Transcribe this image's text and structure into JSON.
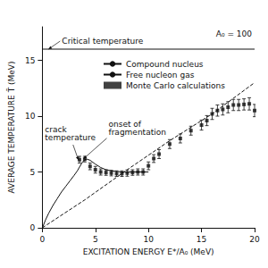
{
  "chart_data": {
    "type": "line",
    "xlabel": "EXCITATION ENERGY E*/A₀ (MeV)",
    "ylabel": "AVERAGE TEMPERATURE T̄ (MeV)",
    "xlim": [
      0,
      20
    ],
    "ylim": [
      0,
      18
    ],
    "xticks": [
      0,
      5,
      10,
      15,
      20
    ],
    "yticks": [
      0,
      5,
      10,
      15
    ],
    "color": "#111111",
    "grid": false,
    "legend": "upper center",
    "series": [
      {
        "name": "Compound nucleus",
        "type": "line",
        "line_style": "solid",
        "x": [
          0.01,
          0.3,
          0.6,
          1.0,
          1.4,
          1.8,
          2.2,
          2.6,
          3.0,
          3.3,
          3.6,
          3.8,
          4.0,
          4.2,
          4.5,
          5.0,
          5.5,
          6.0,
          6.5,
          7.0,
          7.5,
          8.0,
          9.0,
          10.0
        ],
        "values": [
          0.0,
          0.7,
          1.3,
          2.0,
          2.6,
          3.2,
          3.7,
          4.2,
          4.7,
          5.1,
          5.6,
          5.9,
          6.1,
          6.15,
          6.05,
          5.7,
          5.4,
          5.2,
          5.1,
          5.05,
          5.0,
          5.0,
          5.0,
          5.0
        ]
      },
      {
        "name": "Free nucleon gas",
        "type": "line",
        "line_style": "dashed",
        "x": [
          0.0,
          4.0,
          8.0,
          12.0,
          16.0,
          20.0
        ],
        "values": [
          0.0,
          2.5,
          5.2,
          7.8,
          10.2,
          13.0
        ]
      },
      {
        "name": "Monte Carlo calculations",
        "type": "scatter",
        "marker": "square",
        "x": [
          3.5,
          4.0,
          4.5,
          5.0,
          5.5,
          6.0,
          6.5,
          7.0,
          7.5,
          8.0,
          8.5,
          9.0,
          9.5,
          10.0,
          10.5,
          11.0,
          12.0,
          13.0,
          14.0,
          15.0,
          15.5,
          16.0,
          16.5,
          17.0,
          17.5,
          18.0,
          18.5,
          19.0,
          19.5,
          20.0
        ],
        "values": [
          6.1,
          6.15,
          5.5,
          5.2,
          5.0,
          4.95,
          4.9,
          4.85,
          4.85,
          4.9,
          4.95,
          5.0,
          5.0,
          5.55,
          6.2,
          6.6,
          7.5,
          8.0,
          8.7,
          9.2,
          9.6,
          10.2,
          10.5,
          10.6,
          10.8,
          11.0,
          11.0,
          11.05,
          11.1,
          10.5
        ],
        "errors": [
          0.3,
          0.25,
          0.3,
          0.3,
          0.28,
          0.25,
          0.25,
          0.25,
          0.25,
          0.28,
          0.25,
          0.28,
          0.28,
          0.35,
          0.35,
          0.4,
          0.4,
          0.4,
          0.4,
          0.45,
          0.45,
          0.5,
          0.5,
          0.5,
          0.5,
          0.5,
          0.5,
          0.5,
          0.55,
          0.55
        ]
      }
    ],
    "reference_lines": [
      {
        "y": 16,
        "label": "Critical temperature"
      }
    ],
    "annotations": [
      {
        "text": "onset of\nfragmentation",
        "x": 3.8,
        "y": 6.1
      },
      {
        "text": "crack\ntemperature",
        "x": 3.4,
        "y": 6.0
      },
      {
        "text": "A₀ = 100"
      }
    ]
  }
}
